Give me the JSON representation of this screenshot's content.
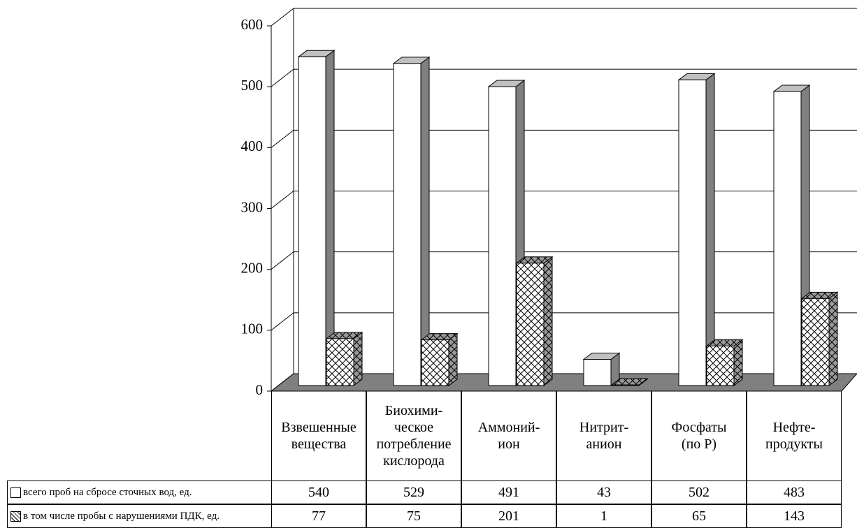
{
  "chart_data": {
    "type": "bar3d",
    "categories": [
      "Взвешенные\nвещества",
      "Биохими-\nческое\nпотребление\nкислорода",
      "Аммоний-\nион",
      "Нитрит-\nанион",
      "Фосфаты\n(по Р)",
      "Нефте-\nпродукты"
    ],
    "series": [
      {
        "name": "всего проб на сбросе сточных вод, ед.",
        "color": "#ffffff",
        "values": [
          540,
          529,
          491,
          43,
          502,
          483
        ]
      },
      {
        "name": "в том числе пробы с нарушениями ПДК, ед.",
        "color": "#ffffff",
        "pattern": "crosshatch",
        "values": [
          77,
          75,
          201,
          1,
          65,
          143
        ]
      }
    ],
    "ylim": [
      0,
      600
    ],
    "yticks": [
      0,
      100,
      200,
      300,
      400,
      500,
      600
    ],
    "grid": true
  }
}
